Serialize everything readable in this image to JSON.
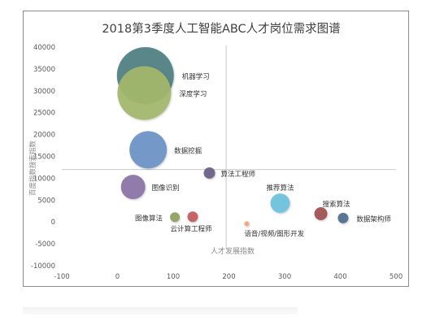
{
  "chart_data": {
    "type": "bubble",
    "title": "2018第3季度人工智能ABC人才岗位需求图谱",
    "xlabel": "人才发展指数",
    "ylabel": "百度指数搜索指数",
    "xlim": [
      -100,
      500
    ],
    "ylim": [
      -10000,
      40000
    ],
    "xticks": [
      "-100",
      "0",
      "100",
      "200",
      "300",
      "400",
      "500"
    ],
    "yticks": [
      "-10000",
      "-5000",
      "0",
      "5000",
      "10000",
      "15000",
      "20000",
      "25000",
      "30000",
      "35000",
      "40000"
    ],
    "quadrant_lines": {
      "x": 195,
      "y": 12000
    },
    "grid": false,
    "legend": "none",
    "points": [
      {
        "label": "机器学习",
        "x": 50,
        "y": 33500,
        "size": 35,
        "color": "#4e7f82"
      },
      {
        "label": "深度学习",
        "x": 48,
        "y": 29500,
        "size": 33,
        "color": "#a4b86b"
      },
      {
        "label": "数据挖掘",
        "x": 55,
        "y": 16500,
        "size": 23,
        "color": "#6b93c5"
      },
      {
        "label": "图像识别",
        "x": 28,
        "y": 8000,
        "size": 15,
        "color": "#8a73a6"
      },
      {
        "label": "算法工程师",
        "x": 165,
        "y": 11200,
        "size": 7,
        "color": "#6a5e86"
      },
      {
        "label": "推荐算法",
        "x": 292,
        "y": 4300,
        "size": 12,
        "color": "#6bc1dc"
      },
      {
        "label": "搜索算法",
        "x": 365,
        "y": 1900,
        "size": 8,
        "color": "#a14f4f"
      },
      {
        "label": "数据架构师",
        "x": 405,
        "y": 900,
        "size": 6.5,
        "color": "#4e6f8e"
      },
      {
        "label": "图像算法",
        "x": 103,
        "y": 1100,
        "size": 6,
        "color": "#8fa05e"
      },
      {
        "label": "云计算工程师",
        "x": 135,
        "y": 1200,
        "size": 6.5,
        "color": "#c05c5c"
      },
      {
        "label": "语音/视频/图形开发",
        "x": 232,
        "y": -400,
        "size": 3,
        "color": "#f4a27a"
      }
    ]
  }
}
